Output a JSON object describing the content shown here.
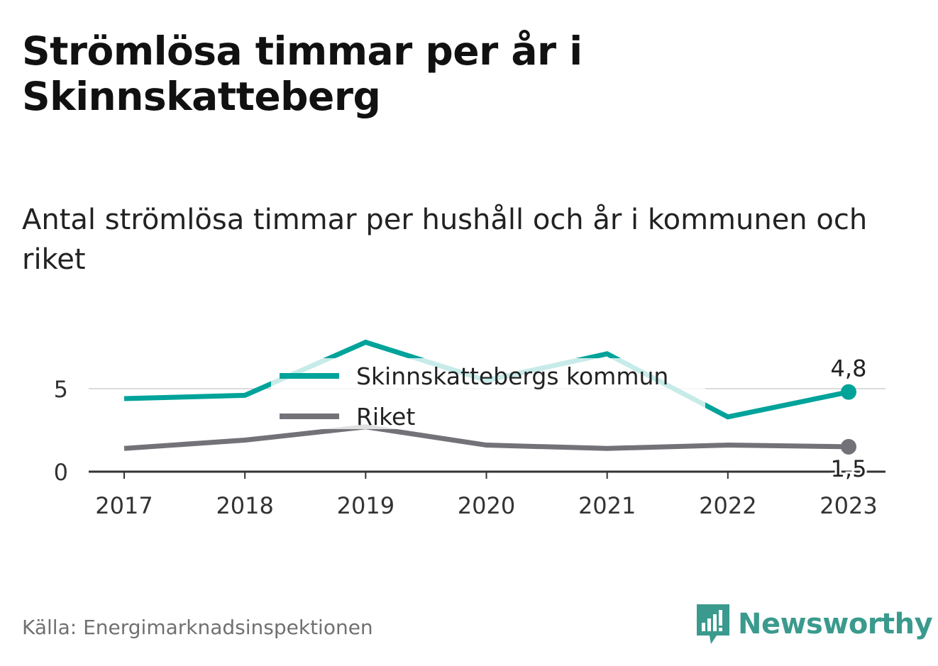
{
  "header": {
    "title": "Strömlösa timmar per år i Skinnskatteberg",
    "subtitle": "Antal strömlösa timmar per hushåll och år i kommunen och riket"
  },
  "footer": {
    "source": "Källa: Energimarknadsinspektionen",
    "brand": "Newsworthy"
  },
  "colors": {
    "kommun": "#00a39a",
    "riket": "#737279",
    "grid": "#dcdcdc",
    "axis": "#333333"
  },
  "icons": {
    "brand_logo": "bar-chart-badge-icon"
  },
  "chart_data": {
    "type": "line",
    "x": [
      "2017",
      "2018",
      "2019",
      "2020",
      "2021",
      "2022",
      "2023"
    ],
    "series": [
      {
        "name": "Skinnskattebergs kommun",
        "color": "#00a39a",
        "values": [
          4.4,
          4.6,
          7.8,
          5.5,
          7.1,
          3.3,
          4.8
        ]
      },
      {
        "name": "Riket",
        "color": "#737279",
        "values": [
          1.4,
          1.9,
          2.7,
          1.6,
          1.4,
          1.6,
          1.5
        ]
      }
    ],
    "end_labels": [
      "4,8",
      "1,5"
    ],
    "yticks": [
      {
        "value": 0,
        "label": "0"
      },
      {
        "value": 5,
        "label": "5"
      }
    ],
    "ylim": [
      0,
      8
    ],
    "grid": true,
    "legend_position": "top-center"
  }
}
